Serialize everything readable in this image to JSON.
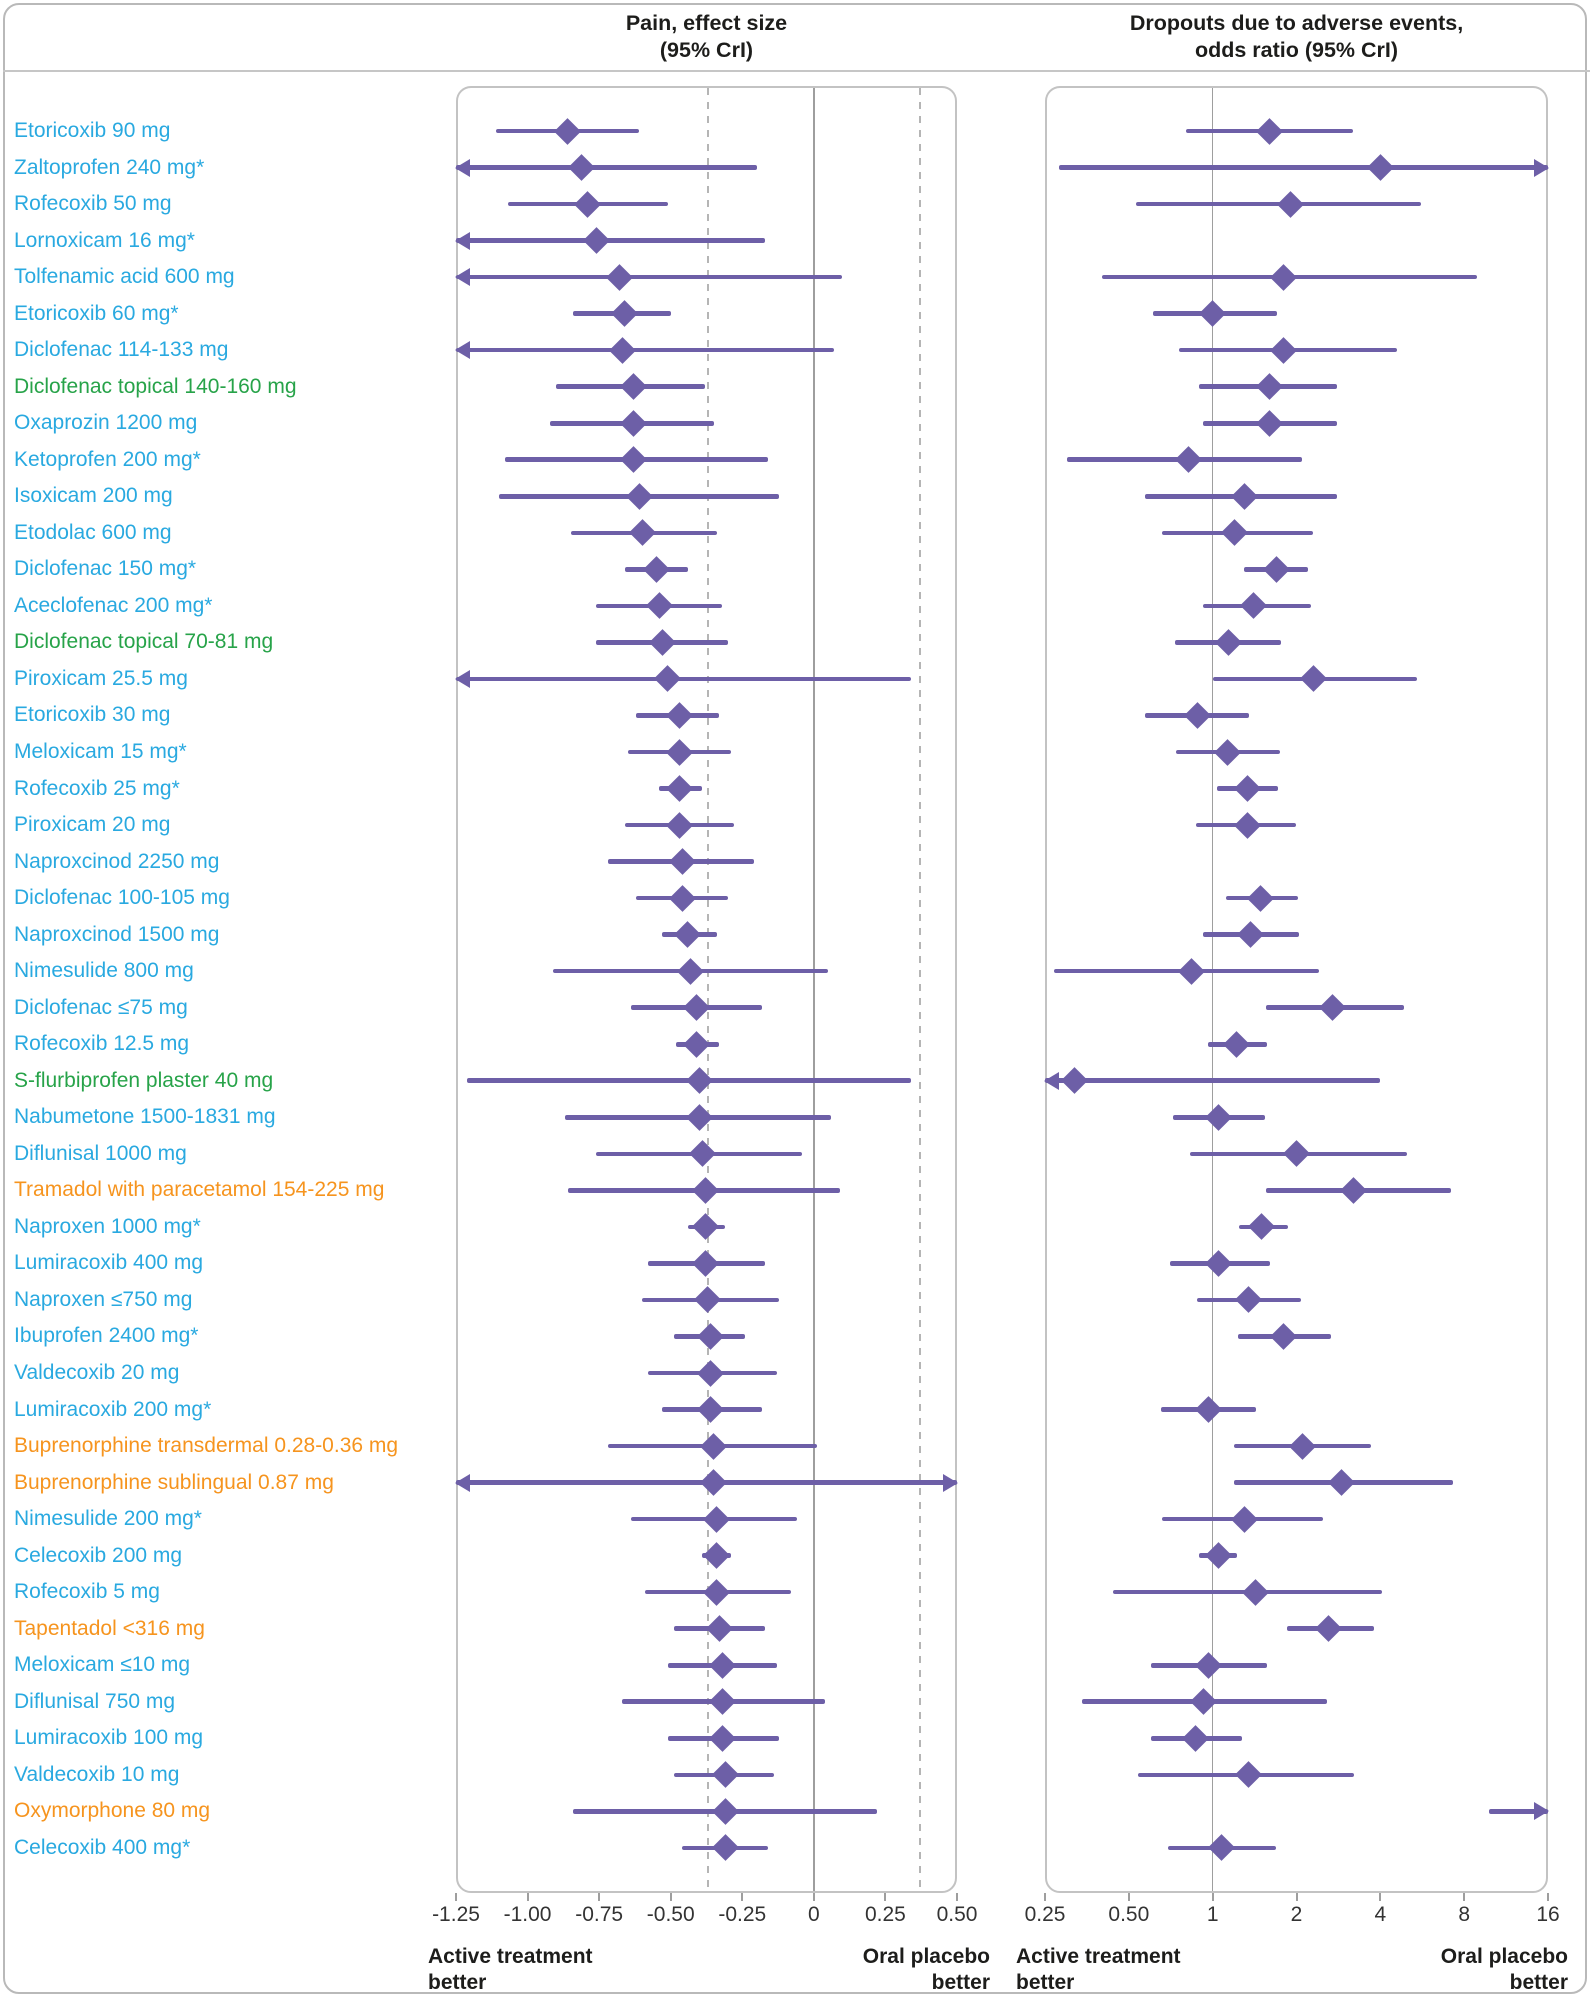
{
  "figure": {
    "panel_headers": {
      "pain": "Pain, effect size\n(95% CrI)",
      "dropouts": "Dropouts due to adverse events,\nodds ratio (95% CrI)"
    },
    "colors": {
      "nsaid_oral": "#29a9e0",
      "nsaid_topical": "#27a349",
      "opioid": "#f6941e",
      "marker_purple": "#6d5fa7",
      "ref_solid": "#9e9e9e",
      "ref_dashed": "#b5b5b5",
      "panel_border": "#c3c3c3"
    }
  },
  "chart_data": {
    "type": "forest",
    "panels": [
      {
        "id": "pain",
        "title": "Pain, effect size (95% CrI)",
        "scale": "linear",
        "xlim": [
          -1.25,
          0.5
        ],
        "tick_values": [
          -1.25,
          -1.0,
          -0.75,
          -0.5,
          -0.25,
          0,
          0.25,
          0.5
        ],
        "tick_labels": [
          "-1.25",
          "-1.00",
          "-0.75",
          "-0.50",
          "-0.25",
          "0",
          "0.25",
          "0.50"
        ],
        "ref_solid": 0,
        "ref_dashed": [
          -0.37,
          0.37
        ],
        "caption_left": "Active treatment\nbetter",
        "caption_right": "Oral placebo\nbetter"
      },
      {
        "id": "dropouts",
        "title": "Dropouts due to adverse events, odds ratio (95% CrI)",
        "scale": "log2",
        "xlim": [
          0.25,
          16
        ],
        "tick_values": [
          0.25,
          0.5,
          1,
          2,
          4,
          8,
          16
        ],
        "tick_labels": [
          "0.25",
          "0.50",
          "1",
          "2",
          "4",
          "8",
          "16"
        ],
        "ref_solid": 1,
        "caption_left": "Active treatment\nbetter",
        "caption_right": "Oral placebo\nbetter"
      }
    ],
    "rows": [
      {
        "label": "Etoricoxib 90 mg",
        "group": "nsaid_oral",
        "pain": {
          "est": -0.86,
          "lo": -1.11,
          "hi": -0.61
        },
        "dropouts": {
          "est": 1.6,
          "lo": 0.8,
          "hi": 3.2
        }
      },
      {
        "label": "Zaltoprofen 240 mg*",
        "group": "nsaid_oral",
        "pain": {
          "est": -0.81,
          "lo": -1.35,
          "hi": -0.2,
          "arrow_lo": true
        },
        "dropouts": {
          "est": 4.0,
          "lo": 0.28,
          "hi": 17,
          "arrow_hi": true
        }
      },
      {
        "label": "Rofecoxib 50 mg",
        "group": "nsaid_oral",
        "pain": {
          "est": -0.79,
          "lo": -1.07,
          "hi": -0.51
        },
        "dropouts": {
          "est": 1.9,
          "lo": 0.53,
          "hi": 5.6
        }
      },
      {
        "label": "Lornoxicam 16 mg*",
        "group": "nsaid_oral",
        "pain": {
          "est": -0.76,
          "lo": -1.35,
          "hi": -0.17,
          "arrow_lo": true
        },
        "dropouts": null
      },
      {
        "label": "Tolfenamic acid 600 mg",
        "group": "nsaid_oral",
        "pain": {
          "est": -0.68,
          "lo": -1.35,
          "hi": 0.1,
          "arrow_lo": true
        },
        "dropouts": {
          "est": 1.8,
          "lo": 0.4,
          "hi": 8.9
        }
      },
      {
        "label": "Etoricoxib 60 mg*",
        "group": "nsaid_oral",
        "pain": {
          "est": -0.66,
          "lo": -0.84,
          "hi": -0.5
        },
        "dropouts": {
          "est": 1.0,
          "lo": 0.61,
          "hi": 1.7
        }
      },
      {
        "label": "Diclofenac 114-133 mg",
        "group": "nsaid_oral",
        "pain": {
          "est": -0.67,
          "lo": -1.35,
          "hi": 0.07,
          "arrow_lo": true
        },
        "dropouts": {
          "est": 1.8,
          "lo": 0.76,
          "hi": 4.6
        }
      },
      {
        "label": "Diclofenac topical 140-160 mg",
        "group": "nsaid_topical",
        "pain": {
          "est": -0.63,
          "lo": -0.9,
          "hi": -0.38
        },
        "dropouts": {
          "est": 1.6,
          "lo": 0.89,
          "hi": 2.8
        }
      },
      {
        "label": "Oxaprozin 1200 mg",
        "group": "nsaid_oral",
        "pain": {
          "est": -0.63,
          "lo": -0.92,
          "hi": -0.35
        },
        "dropouts": {
          "est": 1.6,
          "lo": 0.92,
          "hi": 2.8
        }
      },
      {
        "label": "Ketoprofen 200 mg*",
        "group": "nsaid_oral",
        "pain": {
          "est": -0.63,
          "lo": -1.08,
          "hi": -0.16
        },
        "dropouts": {
          "est": 0.82,
          "lo": 0.3,
          "hi": 2.1
        }
      },
      {
        "label": "Isoxicam 200 mg",
        "group": "nsaid_oral",
        "pain": {
          "est": -0.61,
          "lo": -1.1,
          "hi": -0.12
        },
        "dropouts": {
          "est": 1.3,
          "lo": 0.57,
          "hi": 2.8
        }
      },
      {
        "label": "Etodolac 600 mg",
        "group": "nsaid_oral",
        "pain": {
          "est": -0.6,
          "lo": -0.85,
          "hi": -0.34
        },
        "dropouts": {
          "est": 1.2,
          "lo": 0.66,
          "hi": 2.3
        }
      },
      {
        "label": "Diclofenac 150 mg*",
        "group": "nsaid_oral",
        "pain": {
          "est": -0.55,
          "lo": -0.66,
          "hi": -0.44
        },
        "dropouts": {
          "est": 1.7,
          "lo": 1.3,
          "hi": 2.2
        }
      },
      {
        "label": "Aceclofenac 200 mg*",
        "group": "nsaid_oral",
        "pain": {
          "est": -0.54,
          "lo": -0.76,
          "hi": -0.32
        },
        "dropouts": {
          "est": 1.4,
          "lo": 0.92,
          "hi": 2.25
        }
      },
      {
        "label": "Diclofenac topical 70-81 mg",
        "group": "nsaid_topical",
        "pain": {
          "est": -0.53,
          "lo": -0.76,
          "hi": -0.3
        },
        "dropouts": {
          "est": 1.14,
          "lo": 0.73,
          "hi": 1.76
        }
      },
      {
        "label": "Piroxicam 25.5 mg",
        "group": "nsaid_oral",
        "pain": {
          "est": -0.51,
          "lo": -1.35,
          "hi": 0.34,
          "arrow_lo": true
        },
        "dropouts": {
          "est": 2.3,
          "lo": 1.0,
          "hi": 5.4
        }
      },
      {
        "label": "Etoricoxib 30 mg",
        "group": "nsaid_oral",
        "pain": {
          "est": -0.47,
          "lo": -0.62,
          "hi": -0.33
        },
        "dropouts": {
          "est": 0.88,
          "lo": 0.57,
          "hi": 1.35
        }
      },
      {
        "label": "Meloxicam 15 mg*",
        "group": "nsaid_oral",
        "pain": {
          "est": -0.47,
          "lo": -0.65,
          "hi": -0.29
        },
        "dropouts": {
          "est": 1.13,
          "lo": 0.74,
          "hi": 1.74
        }
      },
      {
        "label": "Rofecoxib 25 mg*",
        "group": "nsaid_oral",
        "pain": {
          "est": -0.47,
          "lo": -0.54,
          "hi": -0.39
        },
        "dropouts": {
          "est": 1.33,
          "lo": 1.04,
          "hi": 1.71
        }
      },
      {
        "label": "Piroxicam 20 mg",
        "group": "nsaid_oral",
        "pain": {
          "est": -0.47,
          "lo": -0.66,
          "hi": -0.28
        },
        "dropouts": {
          "est": 1.33,
          "lo": 0.87,
          "hi": 2.0
        }
      },
      {
        "label": "Naproxcinod 2250 mg",
        "group": "nsaid_oral",
        "pain": {
          "est": -0.46,
          "lo": -0.72,
          "hi": -0.21
        },
        "dropouts": null
      },
      {
        "label": "Diclofenac 100-105 mg",
        "group": "nsaid_oral",
        "pain": {
          "est": -0.46,
          "lo": -0.62,
          "hi": -0.3
        },
        "dropouts": {
          "est": 1.48,
          "lo": 1.12,
          "hi": 2.03
        }
      },
      {
        "label": "Naproxcinod 1500 mg",
        "group": "nsaid_oral",
        "pain": {
          "est": -0.44,
          "lo": -0.53,
          "hi": -0.34
        },
        "dropouts": {
          "est": 1.37,
          "lo": 0.92,
          "hi": 2.04
        }
      },
      {
        "label": "Nimesulide 800 mg",
        "group": "nsaid_oral",
        "pain": {
          "est": -0.43,
          "lo": -0.91,
          "hi": 0.05
        },
        "dropouts": {
          "est": 0.84,
          "lo": 0.27,
          "hi": 2.4
        }
      },
      {
        "label": "Diclofenac ≤75 mg",
        "group": "nsaid_oral",
        "pain": {
          "est": -0.41,
          "lo": -0.64,
          "hi": -0.18
        },
        "dropouts": {
          "est": 2.7,
          "lo": 1.55,
          "hi": 4.85
        }
      },
      {
        "label": "Rofecoxib 12.5 mg",
        "group": "nsaid_oral",
        "pain": {
          "est": -0.41,
          "lo": -0.48,
          "hi": -0.33
        },
        "dropouts": {
          "est": 1.22,
          "lo": 0.96,
          "hi": 1.57
        }
      },
      {
        "label": "S-flurbiprofen plaster 40 mg",
        "group": "nsaid_topical",
        "pain": {
          "est": -0.4,
          "lo": -1.21,
          "hi": 0.34
        },
        "dropouts": {
          "est": 0.32,
          "lo": 0.2,
          "hi": 4.0,
          "arrow_lo": true
        }
      },
      {
        "label": "Nabumetone 1500-1831 mg",
        "group": "nsaid_oral",
        "pain": {
          "est": -0.4,
          "lo": -0.87,
          "hi": 0.06
        },
        "dropouts": {
          "est": 1.05,
          "lo": 0.72,
          "hi": 1.54
        }
      },
      {
        "label": "Diflunisal 1000 mg",
        "group": "nsaid_oral",
        "pain": {
          "est": -0.39,
          "lo": -0.76,
          "hi": -0.04
        },
        "dropouts": {
          "est": 2.0,
          "lo": 0.83,
          "hi": 5.0
        }
      },
      {
        "label": "Tramadol with paracetamol 154-225 mg",
        "group": "opioid",
        "pain": {
          "est": -0.38,
          "lo": -0.86,
          "hi": 0.09
        },
        "dropouts": {
          "est": 3.2,
          "lo": 1.55,
          "hi": 7.2
        }
      },
      {
        "label": "Naproxen 1000 mg*",
        "group": "nsaid_oral",
        "pain": {
          "est": -0.38,
          "lo": -0.44,
          "hi": -0.31
        },
        "dropouts": {
          "est": 1.5,
          "lo": 1.24,
          "hi": 1.87
        }
      },
      {
        "label": "Lumiracoxib 400 mg",
        "group": "nsaid_oral",
        "pain": {
          "est": -0.38,
          "lo": -0.58,
          "hi": -0.17
        },
        "dropouts": {
          "est": 1.05,
          "lo": 0.7,
          "hi": 1.61
        }
      },
      {
        "label": "Naproxen ≤750 mg",
        "group": "nsaid_oral",
        "pain": {
          "est": -0.37,
          "lo": -0.6,
          "hi": -0.12
        },
        "dropouts": {
          "est": 1.34,
          "lo": 0.88,
          "hi": 2.08
        }
      },
      {
        "label": "Ibuprofen 2400 mg*",
        "group": "nsaid_oral",
        "pain": {
          "est": -0.36,
          "lo": -0.49,
          "hi": -0.24
        },
        "dropouts": {
          "est": 1.8,
          "lo": 1.23,
          "hi": 2.66
        }
      },
      {
        "label": "Valdecoxib 20 mg",
        "group": "nsaid_oral",
        "pain": {
          "est": -0.36,
          "lo": -0.58,
          "hi": -0.13
        },
        "dropouts": null
      },
      {
        "label": "Lumiracoxib 200 mg*",
        "group": "nsaid_oral",
        "pain": {
          "est": -0.36,
          "lo": -0.53,
          "hi": -0.18
        },
        "dropouts": {
          "est": 0.97,
          "lo": 0.65,
          "hi": 1.43
        }
      },
      {
        "label": "Buprenorphine transdermal 0.28-0.36 mg",
        "group": "opioid",
        "pain": {
          "est": -0.35,
          "lo": -0.72,
          "hi": 0.01
        },
        "dropouts": {
          "est": 2.1,
          "lo": 1.19,
          "hi": 3.7
        }
      },
      {
        "label": "Buprenorphine sublingual 0.87 mg",
        "group": "opioid",
        "pain": {
          "est": -0.35,
          "lo": -1.35,
          "hi": 0.55,
          "arrow_lo": true,
          "arrow_hi": true
        },
        "dropouts": {
          "est": 2.9,
          "lo": 1.19,
          "hi": 7.3
        }
      },
      {
        "label": "Nimesulide 200 mg*",
        "group": "nsaid_oral",
        "pain": {
          "est": -0.34,
          "lo": -0.64,
          "hi": -0.06
        },
        "dropouts": {
          "est": 1.3,
          "lo": 0.66,
          "hi": 2.5
        }
      },
      {
        "label": "Celecoxib 200 mg",
        "group": "nsaid_oral",
        "pain": {
          "est": -0.34,
          "lo": -0.39,
          "hi": -0.29
        },
        "dropouts": {
          "est": 1.05,
          "lo": 0.89,
          "hi": 1.22
        }
      },
      {
        "label": "Rofecoxib 5 mg",
        "group": "nsaid_oral",
        "pain": {
          "est": -0.34,
          "lo": -0.59,
          "hi": -0.08
        },
        "dropouts": {
          "est": 1.43,
          "lo": 0.44,
          "hi": 4.05
        }
      },
      {
        "label": "Tapentadol <316 mg",
        "group": "opioid",
        "pain": {
          "est": -0.33,
          "lo": -0.49,
          "hi": -0.17
        },
        "dropouts": {
          "est": 2.6,
          "lo": 1.85,
          "hi": 3.8
        }
      },
      {
        "label": "Meloxicam ≤10 mg",
        "group": "nsaid_oral",
        "pain": {
          "est": -0.32,
          "lo": -0.51,
          "hi": -0.13
        },
        "dropouts": {
          "est": 0.97,
          "lo": 0.6,
          "hi": 1.57
        }
      },
      {
        "label": "Diflunisal 750 mg",
        "group": "nsaid_oral",
        "pain": {
          "est": -0.32,
          "lo": -0.67,
          "hi": 0.04
        },
        "dropouts": {
          "est": 0.93,
          "lo": 0.34,
          "hi": 2.57
        }
      },
      {
        "label": "Lumiracoxib 100 mg",
        "group": "nsaid_oral",
        "pain": {
          "est": -0.32,
          "lo": -0.51,
          "hi": -0.12
        },
        "dropouts": {
          "est": 0.87,
          "lo": 0.6,
          "hi": 1.27
        }
      },
      {
        "label": "Valdecoxib 10 mg",
        "group": "nsaid_oral",
        "pain": {
          "est": -0.31,
          "lo": -0.49,
          "hi": -0.14
        },
        "dropouts": {
          "est": 1.34,
          "lo": 0.54,
          "hi": 3.23
        }
      },
      {
        "label": "Oxymorphone 80 mg",
        "group": "opioid",
        "pain": {
          "est": -0.31,
          "lo": -0.84,
          "hi": 0.22
        },
        "dropouts": {
          "est": null,
          "lo": 9.8,
          "hi": 17,
          "arrow_hi": true
        }
      },
      {
        "label": "Celecoxib 400 mg*",
        "group": "nsaid_oral",
        "pain": {
          "est": -0.31,
          "lo": -0.46,
          "hi": -0.16
        },
        "dropouts": {
          "est": 1.08,
          "lo": 0.69,
          "hi": 1.69
        }
      }
    ]
  }
}
